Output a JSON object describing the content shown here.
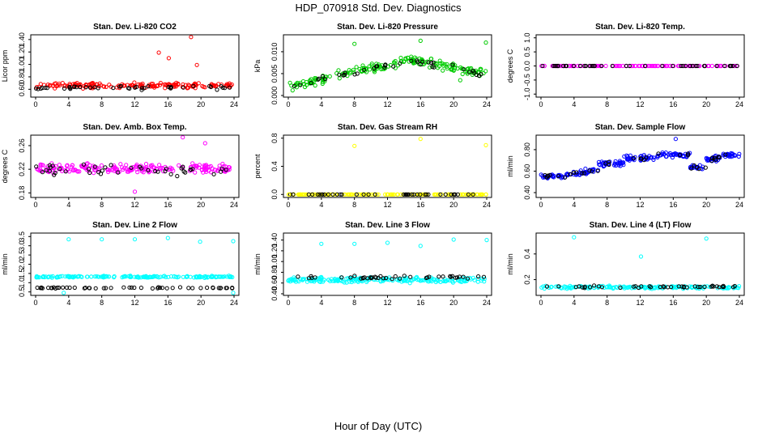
{
  "figure": {
    "title": "HDP_070918  Std. Dev. Diagnostics",
    "xlabel": "Hour of Day (UTC)"
  },
  "chart_data": [
    {
      "id": "co2",
      "type": "scatter",
      "title": "Stan. Dev. Li-820 CO2",
      "ylabel": "Licor ppm",
      "xlim": [
        0,
        24
      ],
      "ylim": [
        0.5,
        1.45
      ],
      "yticks": [
        0.6,
        0.8,
        1.0,
        1.2,
        1.4
      ],
      "xticks": [
        0,
        4,
        8,
        12,
        16,
        20,
        24
      ],
      "colors": {
        "main": "#ff0000",
        "highlight": "#000000"
      },
      "series": [
        {
          "name": "red",
          "n": 170,
          "mean": 0.66,
          "spread": 0.06
        },
        {
          "name": "black",
          "n": 42,
          "mean": 0.63,
          "spread": 0.05
        }
      ],
      "extra_points": [
        [
          14.9,
          1.19
        ],
        [
          16.1,
          1.1
        ],
        [
          18.8,
          1.44
        ],
        [
          19.5,
          0.99
        ]
      ]
    },
    {
      "id": "pressure",
      "type": "scatter",
      "title": "Stan. Dev. Li-820 Pressure",
      "ylabel": "kPa",
      "xlim": [
        0,
        24
      ],
      "ylim": [
        0,
        0.0135
      ],
      "yticks": [
        0.0,
        0.005,
        0.01
      ],
      "ytick_labels": [
        "0.000",
        "0.005",
        "0.010"
      ],
      "xticks": [
        0,
        4,
        8,
        12,
        16,
        20,
        24
      ],
      "colors": {
        "main": "#00cc00",
        "highlight": "#000000"
      },
      "series": [
        {
          "name": "green",
          "n": 190,
          "trend": "hump",
          "peak": 0.008,
          "spread": 0.0015
        },
        {
          "name": "black",
          "n": 40,
          "trend": "hump",
          "peak": 0.0078,
          "spread": 0.001
        }
      ],
      "extra_points": [
        [
          8,
          0.0118
        ],
        [
          16,
          0.0125
        ],
        [
          23.9,
          0.0121
        ],
        [
          20.8,
          0.0035
        ]
      ]
    },
    {
      "id": "temp",
      "type": "scatter",
      "title": "Stan. Dev. Li-820 Temp.",
      "ylabel": "degrees C",
      "xlim": [
        0,
        24
      ],
      "ylim": [
        -1.05,
        1.05
      ],
      "yticks": [
        -1.0,
        -0.5,
        0.0,
        0.5,
        1.0
      ],
      "xticks": [
        0,
        4,
        8,
        12,
        16,
        20,
        24
      ],
      "colors": {
        "main": "#ff00ff",
        "highlight": "#000000"
      },
      "series": [
        {
          "name": "magenta",
          "n": 120,
          "mean": 0.0,
          "spread": 0.0
        },
        {
          "name": "black",
          "n": 40,
          "mean": 0.0,
          "spread": 0.0
        }
      ],
      "extra_points": []
    },
    {
      "id": "ambbox",
      "type": "scatter",
      "title": "Stan. Dev. Amb. Box Temp.",
      "ylabel": "degrees C",
      "xlim": [
        0,
        24
      ],
      "ylim": [
        0.175,
        0.275
      ],
      "yticks": [
        0.18,
        0.22,
        0.26
      ],
      "xticks": [
        0,
        4,
        8,
        12,
        16,
        20,
        24
      ],
      "colors": {
        "main": "#ff00ff",
        "highlight": "#000000"
      },
      "series": [
        {
          "name": "magenta",
          "n": 200,
          "mean": 0.221,
          "spread": 0.012
        },
        {
          "name": "black",
          "n": 42,
          "mean": 0.218,
          "spread": 0.014
        }
      ],
      "extra_points": [
        [
          20.5,
          0.264
        ],
        [
          12,
          0.182
        ],
        [
          17.8,
          0.274
        ]
      ]
    },
    {
      "id": "rh",
      "type": "scatter",
      "title": "Stan. Dev. Gas Stream RH",
      "ylabel": "percent",
      "xlim": [
        0,
        24
      ],
      "ylim": [
        -0.02,
        0.82
      ],
      "yticks": [
        0.0,
        0.4,
        0.8
      ],
      "xticks": [
        0,
        4,
        8,
        12,
        16,
        20,
        24
      ],
      "colors": {
        "main": "#ffff00",
        "highlight": "#000000"
      },
      "series": [
        {
          "name": "yellow",
          "n": 140,
          "mean": 0.0,
          "spread": 0.0
        },
        {
          "name": "black",
          "n": 40,
          "mean": 0.0,
          "spread": 0.0
        }
      ],
      "extra_points": [
        [
          8,
          0.69
        ],
        [
          16,
          0.79
        ],
        [
          23.9,
          0.7
        ],
        [
          0.1,
          0.0
        ]
      ]
    },
    {
      "id": "sample",
      "type": "scatter",
      "title": "Stan. Dev. Sample Flow",
      "ylabel": "ml/min",
      "xlim": [
        0,
        24
      ],
      "ylim": [
        0.37,
        0.92
      ],
      "yticks": [
        0.4,
        0.6,
        0.8
      ],
      "xticks": [
        0,
        4,
        8,
        12,
        16,
        20,
        24
      ],
      "colors": {
        "main": "#0000ff",
        "highlight": "#000000"
      },
      "series": [
        {
          "name": "blue",
          "n": 230,
          "trend": "segments",
          "spread": 0.04
        },
        {
          "name": "black",
          "n": 40,
          "trend": "segments",
          "spread": 0.03
        }
      ],
      "extra_points": [
        [
          16.3,
          0.9
        ]
      ]
    },
    {
      "id": "line2",
      "type": "scatter",
      "title": "Stan. Dev. Line 2 Flow",
      "ylabel": "ml/min",
      "xlim": [
        0,
        24
      ],
      "ylim": [
        0.4,
        3.6
      ],
      "yticks": [
        0.5,
        1.0,
        1.5,
        2.0,
        2.5,
        3.0,
        3.5
      ],
      "xticks": [
        0,
        4,
        8,
        12,
        16,
        20,
        24
      ],
      "colors": {
        "main": "#00ffff",
        "highlight": "#000000"
      },
      "series": [
        {
          "name": "cyan",
          "n": 170,
          "mean": 1.32,
          "spread": 0.07
        },
        {
          "name": "black",
          "n": 50,
          "mean": 0.72,
          "spread": 0.04
        }
      ],
      "extra_points": [
        [
          4,
          3.35
        ],
        [
          8,
          3.35
        ],
        [
          12,
          3.35
        ],
        [
          16,
          3.42
        ],
        [
          19.9,
          3.22
        ],
        [
          23.9,
          3.25
        ],
        [
          23.9,
          0.45
        ],
        [
          3.4,
          0.45
        ]
      ]
    },
    {
      "id": "line3",
      "type": "scatter",
      "title": "Stan. Dev. Line 3 Flow",
      "ylabel": "ml/min",
      "xlim": [
        0,
        24
      ],
      "ylim": [
        0.4,
        1.5
      ],
      "yticks": [
        0.4,
        0.6,
        0.8,
        1.0,
        1.2,
        1.4
      ],
      "xticks": [
        0,
        4,
        8,
        12,
        16,
        20,
        24
      ],
      "colors": {
        "main": "#00ffff",
        "highlight": "#000000"
      },
      "series": [
        {
          "name": "cyan",
          "n": 200,
          "mean": 0.66,
          "spread": 0.07
        },
        {
          "name": "black",
          "n": 42,
          "mean": 0.71,
          "spread": 0.05
        }
      ],
      "extra_points": [
        [
          4,
          1.33
        ],
        [
          8,
          1.33
        ],
        [
          12,
          1.35
        ],
        [
          16,
          1.29
        ],
        [
          20,
          1.41
        ],
        [
          24,
          1.4
        ]
      ]
    },
    {
      "id": "line4",
      "type": "scatter",
      "title": "Stan. Dev. Line 4 (LT) Flow",
      "ylabel": "ml/min",
      "xlim": [
        0,
        24
      ],
      "ylim": [
        0.09,
        0.55
      ],
      "yticks": [
        0.2,
        0.4
      ],
      "xticks": [
        0,
        4,
        8,
        12,
        16,
        20,
        24
      ],
      "colors": {
        "main": "#00ffff",
        "highlight": "#000000"
      },
      "series": [
        {
          "name": "cyan",
          "n": 160,
          "mean": 0.14,
          "spread": 0.015
        },
        {
          "name": "black",
          "n": 42,
          "mean": 0.145,
          "spread": 0.012
        }
      ],
      "extra_points": [
        [
          4,
          0.53
        ],
        [
          12.1,
          0.38
        ],
        [
          20,
          0.52
        ]
      ]
    }
  ]
}
